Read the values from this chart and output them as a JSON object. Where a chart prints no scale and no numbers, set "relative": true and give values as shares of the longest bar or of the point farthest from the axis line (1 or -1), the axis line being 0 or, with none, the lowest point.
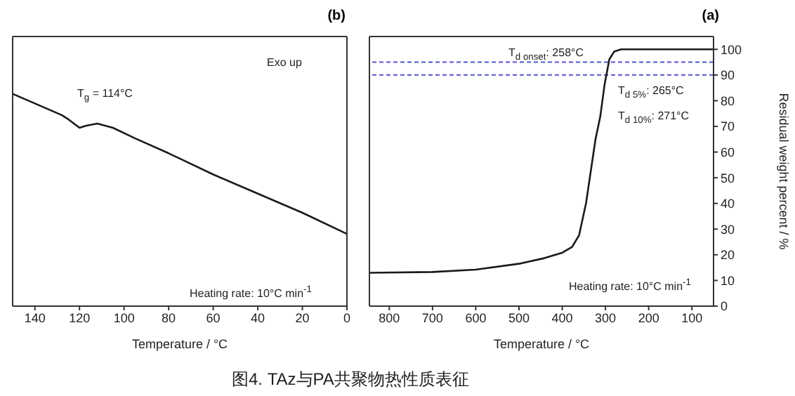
{
  "chart_data": [
    {
      "type": "line",
      "title": "(b)",
      "xlabel": "Temperature / °C",
      "relative": true,
      "tick_labels": "x",
      "xlim": [
        150,
        0
      ],
      "xticks": [
        140,
        120,
        100,
        80,
        60,
        40,
        20,
        0
      ],
      "x": [
        150,
        128,
        125,
        120,
        117,
        112,
        105,
        95,
        80,
        60,
        40,
        20,
        0
      ],
      "series": [
        {
          "color": "#1a1a1a",
          "values": [
            1,
            0.9,
            0.88,
            0.84,
            0.85,
            0.86,
            0.84,
            0.79,
            0.72,
            0.62,
            0.53,
            0.44,
            0.34
          ]
        }
      ],
      "annotations": [
        "Exo up",
        "T$_{g}$ = 114°C",
        "Heating rate: 10°C min$^{-1}$"
      ]
    },
    {
      "type": "line",
      "title": "(a)",
      "xlabel": "Temperature / °C",
      "ylabel": "Residual weight percent / %",
      "xlim": [
        846,
        50
      ],
      "xticks": [
        800,
        700,
        600,
        500,
        400,
        300,
        200,
        100
      ],
      "ylim": [
        0,
        105
      ],
      "yticks": [
        0,
        10,
        20,
        30,
        40,
        50,
        60,
        70,
        80,
        90,
        100
      ],
      "x": [
        846,
        700,
        600,
        500,
        441,
        400,
        377,
        361,
        345,
        334,
        323,
        312,
        302,
        291,
        280,
        264,
        50
      ],
      "series": [
        {
          "color": "#1a1a1a",
          "values": [
            13,
            13.3,
            14.2,
            16.5,
            18.7,
            20.8,
            23.1,
            27.6,
            40,
            52.5,
            65,
            73.8,
            86.3,
            96.1,
            99.1,
            100,
            100
          ]
        }
      ],
      "ref_lines": [
        {
          "axis": "y",
          "value": 95,
          "color": "#5555cc",
          "line_style": "dashed"
        },
        {
          "axis": "y",
          "value": 90,
          "color": "#5555cc",
          "line_style": "dashed"
        }
      ],
      "annotations": [
        "T$_{d onset}$: 258°C",
        "T$_{d 5%}$: 265°C",
        "T$_{d 10%}$: 271°C",
        "Heating rate: 10°C min$^{-1}$",
        "图4. TAz与PA共聚物热性质表征"
      ]
    }
  ]
}
